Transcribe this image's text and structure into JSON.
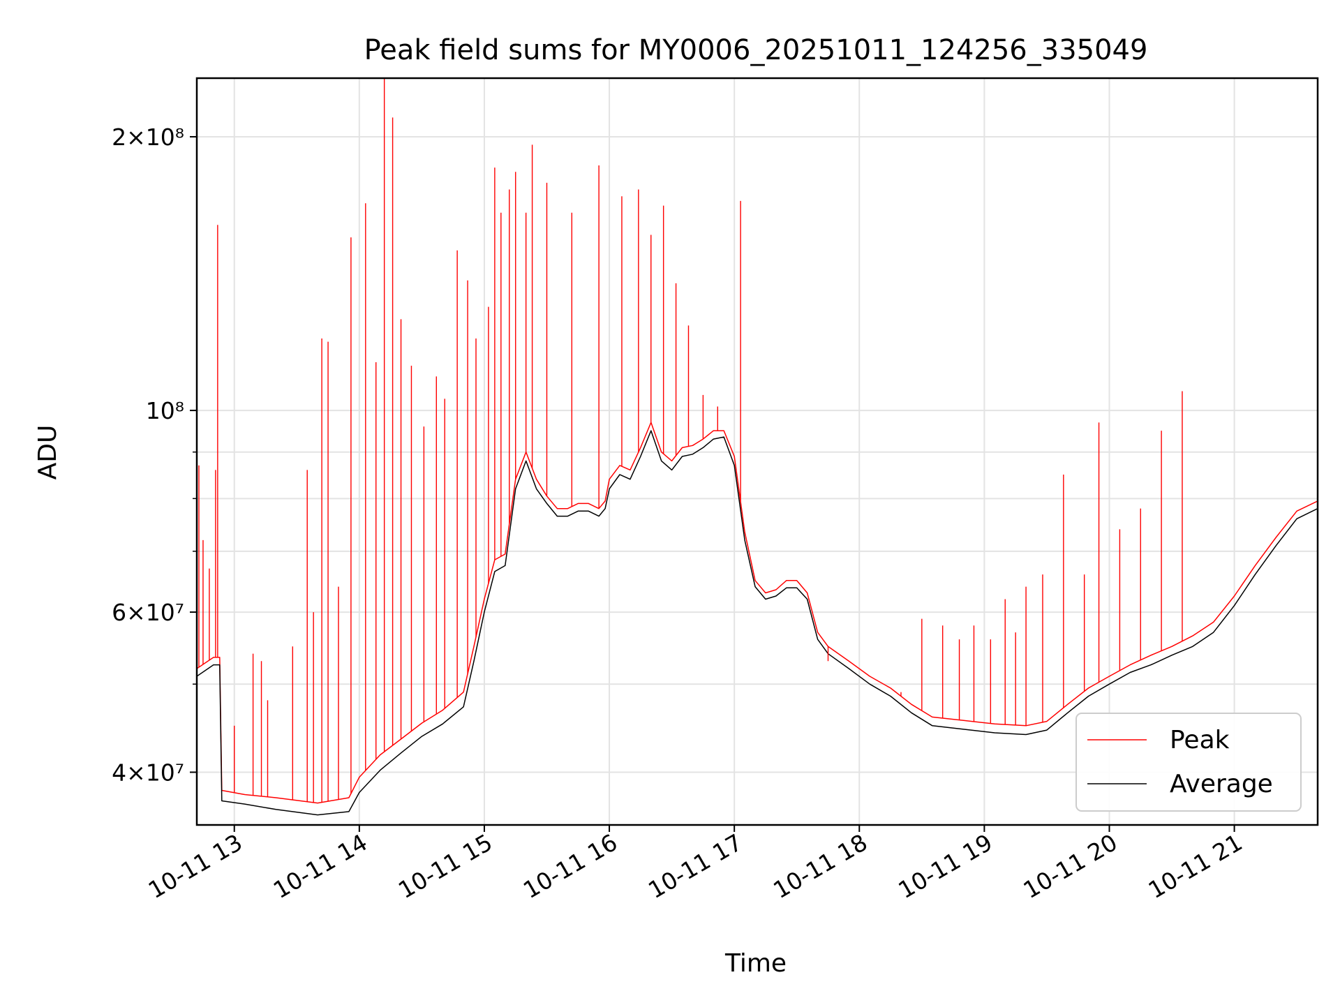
{
  "chart_data": {
    "type": "line",
    "title": "Peak field sums for MY0006_20251011_124256_335049",
    "xlabel": "Time",
    "ylabel": "ADU",
    "x_scale": "time",
    "y_scale": "log",
    "xlim": [
      "2025-10-11 12:42",
      "2025-10-11 21:40"
    ],
    "ylim": [
      35000000,
      232000000
    ],
    "grid": true,
    "legend_position": "lower-right",
    "x_ticks": [
      {
        "t": "2025-10-11 13:00",
        "label": "10-11 13"
      },
      {
        "t": "2025-10-11 14:00",
        "label": "10-11 14"
      },
      {
        "t": "2025-10-11 15:00",
        "label": "10-11 15"
      },
      {
        "t": "2025-10-11 16:00",
        "label": "10-11 16"
      },
      {
        "t": "2025-10-11 17:00",
        "label": "10-11 17"
      },
      {
        "t": "2025-10-11 18:00",
        "label": "10-11 18"
      },
      {
        "t": "2025-10-11 19:00",
        "label": "10-11 19"
      },
      {
        "t": "2025-10-11 20:00",
        "label": "10-11 20"
      },
      {
        "t": "2025-10-11 21:00",
        "label": "10-11 21"
      }
    ],
    "y_ticks": [
      {
        "v": 40000000,
        "label": "4×10⁷"
      },
      {
        "v": 60000000,
        "label": "6×10⁷"
      },
      {
        "v": 100000000,
        "label": "10⁸"
      },
      {
        "v": 200000000,
        "label": "2×10⁸"
      }
    ],
    "y_minor_ticks": [
      50000000,
      70000000,
      80000000,
      90000000
    ],
    "series": [
      {
        "name": "Average",
        "color": "#000000",
        "points": [
          [
            "2025-10-11 12:42",
            51000000
          ],
          [
            "2025-10-11 12:50",
            52500000
          ],
          [
            "2025-10-11 12:53",
            52500000
          ],
          [
            "2025-10-11 12:54",
            37200000
          ],
          [
            "2025-10-11 13:05",
            36900000
          ],
          [
            "2025-10-11 13:20",
            36400000
          ],
          [
            "2025-10-11 13:40",
            35900000
          ],
          [
            "2025-10-11 13:55",
            36200000
          ],
          [
            "2025-10-11 14:00",
            38000000
          ],
          [
            "2025-10-11 14:10",
            40200000
          ],
          [
            "2025-10-11 14:20",
            42000000
          ],
          [
            "2025-10-11 14:30",
            43800000
          ],
          [
            "2025-10-11 14:40",
            45200000
          ],
          [
            "2025-10-11 14:50",
            47200000
          ],
          [
            "2025-10-11 14:55",
            53000000
          ],
          [
            "2025-10-11 15:00",
            60000000
          ],
          [
            "2025-10-11 15:05",
            66500000
          ],
          [
            "2025-10-11 15:10",
            67500000
          ],
          [
            "2025-10-11 15:15",
            82000000
          ],
          [
            "2025-10-11 15:20",
            88000000
          ],
          [
            "2025-10-11 15:25",
            82000000
          ],
          [
            "2025-10-11 15:30",
            79000000
          ],
          [
            "2025-10-11 15:35",
            76500000
          ],
          [
            "2025-10-11 15:40",
            76500000
          ],
          [
            "2025-10-11 15:45",
            77500000
          ],
          [
            "2025-10-11 15:50",
            77500000
          ],
          [
            "2025-10-11 15:55",
            76500000
          ],
          [
            "2025-10-11 15:58",
            78000000
          ],
          [
            "2025-10-11 16:00",
            82000000
          ],
          [
            "2025-10-11 16:05",
            85000000
          ],
          [
            "2025-10-11 16:10",
            84000000
          ],
          [
            "2025-10-11 16:15",
            89000000
          ],
          [
            "2025-10-11 16:20",
            95000000
          ],
          [
            "2025-10-11 16:25",
            88000000
          ],
          [
            "2025-10-11 16:30",
            86000000
          ],
          [
            "2025-10-11 16:35",
            89000000
          ],
          [
            "2025-10-11 16:40",
            89500000
          ],
          [
            "2025-10-11 16:45",
            91000000
          ],
          [
            "2025-10-11 16:50",
            93000000
          ],
          [
            "2025-10-11 16:55",
            93500000
          ],
          [
            "2025-10-11 17:00",
            87000000
          ],
          [
            "2025-10-11 17:05",
            72000000
          ],
          [
            "2025-10-11 17:10",
            64000000
          ],
          [
            "2025-10-11 17:15",
            62000000
          ],
          [
            "2025-10-11 17:20",
            62500000
          ],
          [
            "2025-10-11 17:25",
            63800000
          ],
          [
            "2025-10-11 17:30",
            63800000
          ],
          [
            "2025-10-11 17:35",
            62000000
          ],
          [
            "2025-10-11 17:40",
            56000000
          ],
          [
            "2025-10-11 17:45",
            54000000
          ],
          [
            "2025-10-11 17:55",
            52000000
          ],
          [
            "2025-10-11 18:05",
            50000000
          ],
          [
            "2025-10-11 18:15",
            48500000
          ],
          [
            "2025-10-11 18:25",
            46500000
          ],
          [
            "2025-10-11 18:35",
            45000000
          ],
          [
            "2025-10-11 18:50",
            44600000
          ],
          [
            "2025-10-11 19:05",
            44200000
          ],
          [
            "2025-10-11 19:20",
            44000000
          ],
          [
            "2025-10-11 19:30",
            44500000
          ],
          [
            "2025-10-11 19:40",
            46500000
          ],
          [
            "2025-10-11 19:50",
            48500000
          ],
          [
            "2025-10-11 20:00",
            50000000
          ],
          [
            "2025-10-11 20:10",
            51500000
          ],
          [
            "2025-10-11 20:20",
            52500000
          ],
          [
            "2025-10-11 20:30",
            53800000
          ],
          [
            "2025-10-11 20:40",
            55000000
          ],
          [
            "2025-10-11 20:50",
            57000000
          ],
          [
            "2025-10-11 21:00",
            61000000
          ],
          [
            "2025-10-11 21:10",
            66000000
          ],
          [
            "2025-10-11 21:20",
            71000000
          ],
          [
            "2025-10-11 21:30",
            76000000
          ],
          [
            "2025-10-11 21:40",
            78000000
          ]
        ]
      },
      {
        "name": "Peak",
        "color": "#ff0000",
        "points": [
          [
            "2025-10-11 12:42",
            52000000
          ],
          [
            "2025-10-11 12:50",
            53500000
          ],
          [
            "2025-10-11 12:53",
            53500000
          ],
          [
            "2025-10-11 12:54",
            38200000
          ],
          [
            "2025-10-11 13:05",
            37800000
          ],
          [
            "2025-10-11 13:20",
            37500000
          ],
          [
            "2025-10-11 13:40",
            37000000
          ],
          [
            "2025-10-11 13:55",
            37500000
          ],
          [
            "2025-10-11 14:00",
            39500000
          ],
          [
            "2025-10-11 14:10",
            41800000
          ],
          [
            "2025-10-11 14:20",
            43500000
          ],
          [
            "2025-10-11 14:30",
            45300000
          ],
          [
            "2025-10-11 14:40",
            46800000
          ],
          [
            "2025-10-11 14:50",
            49000000
          ],
          [
            "2025-10-11 14:55",
            55000000
          ],
          [
            "2025-10-11 15:00",
            62000000
          ],
          [
            "2025-10-11 15:05",
            68500000
          ],
          [
            "2025-10-11 15:10",
            69500000
          ],
          [
            "2025-10-11 15:15",
            84000000
          ],
          [
            "2025-10-11 15:20",
            90000000
          ],
          [
            "2025-10-11 15:25",
            84000000
          ],
          [
            "2025-10-11 15:30",
            80500000
          ],
          [
            "2025-10-11 15:35",
            78000000
          ],
          [
            "2025-10-11 15:40",
            78000000
          ],
          [
            "2025-10-11 15:45",
            79000000
          ],
          [
            "2025-10-11 15:50",
            79000000
          ],
          [
            "2025-10-11 15:55",
            78000000
          ],
          [
            "2025-10-11 15:58",
            79500000
          ],
          [
            "2025-10-11 16:00",
            84000000
          ],
          [
            "2025-10-11 16:05",
            87000000
          ],
          [
            "2025-10-11 16:10",
            86000000
          ],
          [
            "2025-10-11 16:15",
            91000000
          ],
          [
            "2025-10-11 16:20",
            97000000
          ],
          [
            "2025-10-11 16:25",
            90000000
          ],
          [
            "2025-10-11 16:30",
            88000000
          ],
          [
            "2025-10-11 16:35",
            91000000
          ],
          [
            "2025-10-11 16:40",
            91500000
          ],
          [
            "2025-10-11 16:45",
            93000000
          ],
          [
            "2025-10-11 16:50",
            95000000
          ],
          [
            "2025-10-11 16:55",
            95000000
          ],
          [
            "2025-10-11 17:00",
            89000000
          ],
          [
            "2025-10-11 17:05",
            73500000
          ],
          [
            "2025-10-11 17:10",
            65000000
          ],
          [
            "2025-10-11 17:15",
            63000000
          ],
          [
            "2025-10-11 17:20",
            63500000
          ],
          [
            "2025-10-11 17:25",
            65000000
          ],
          [
            "2025-10-11 17:30",
            65000000
          ],
          [
            "2025-10-11 17:35",
            63000000
          ],
          [
            "2025-10-11 17:40",
            57000000
          ],
          [
            "2025-10-11 17:45",
            55000000
          ],
          [
            "2025-10-11 17:55",
            53000000
          ],
          [
            "2025-10-11 18:05",
            51000000
          ],
          [
            "2025-10-11 18:15",
            49500000
          ],
          [
            "2025-10-11 18:25",
            47500000
          ],
          [
            "2025-10-11 18:35",
            46000000
          ],
          [
            "2025-10-11 18:50",
            45600000
          ],
          [
            "2025-10-11 19:05",
            45200000
          ],
          [
            "2025-10-11 19:20",
            45000000
          ],
          [
            "2025-10-11 19:30",
            45500000
          ],
          [
            "2025-10-11 19:40",
            47500000
          ],
          [
            "2025-10-11 19:50",
            49500000
          ],
          [
            "2025-10-11 20:00",
            51000000
          ],
          [
            "2025-10-11 20:10",
            52500000
          ],
          [
            "2025-10-11 20:20",
            53800000
          ],
          [
            "2025-10-11 20:30",
            55000000
          ],
          [
            "2025-10-11 20:40",
            56500000
          ],
          [
            "2025-10-11 20:50",
            58500000
          ],
          [
            "2025-10-11 21:00",
            62500000
          ],
          [
            "2025-10-11 21:10",
            67500000
          ],
          [
            "2025-10-11 21:20",
            72500000
          ],
          [
            "2025-10-11 21:30",
            77500000
          ],
          [
            "2025-10-11 21:40",
            79500000
          ]
        ],
        "spikes": [
          [
            "2025-10-11 12:43",
            87000000
          ],
          [
            "2025-10-11 12:45",
            72000000
          ],
          [
            "2025-10-11 12:48",
            67000000
          ],
          [
            "2025-10-11 12:51",
            86000000
          ],
          [
            "2025-10-11 12:52",
            160000000
          ],
          [
            "2025-10-11 13:00",
            45000000
          ],
          [
            "2025-10-11 13:09",
            54000000
          ],
          [
            "2025-10-11 13:13",
            53000000
          ],
          [
            "2025-10-11 13:16",
            48000000
          ],
          [
            "2025-10-11 13:28",
            55000000
          ],
          [
            "2025-10-11 13:35",
            86000000
          ],
          [
            "2025-10-11 13:38",
            60000000
          ],
          [
            "2025-10-11 13:42",
            120000000
          ],
          [
            "2025-10-11 13:45",
            119000000
          ],
          [
            "2025-10-11 13:50",
            64000000
          ],
          [
            "2025-10-11 13:56",
            155000000
          ],
          [
            "2025-10-11 14:03",
            169000000
          ],
          [
            "2025-10-11 14:08",
            113000000
          ],
          [
            "2025-10-11 14:12",
            232000000
          ],
          [
            "2025-10-11 14:16",
            210000000
          ],
          [
            "2025-10-11 14:20",
            126000000
          ],
          [
            "2025-10-11 14:25",
            112000000
          ],
          [
            "2025-10-11 14:31",
            96000000
          ],
          [
            "2025-10-11 14:37",
            109000000
          ],
          [
            "2025-10-11 14:41",
            103000000
          ],
          [
            "2025-10-11 14:47",
            150000000
          ],
          [
            "2025-10-11 14:52",
            139000000
          ],
          [
            "2025-10-11 14:56",
            120000000
          ],
          [
            "2025-10-11 15:02",
            130000000
          ],
          [
            "2025-10-11 15:05",
            185000000
          ],
          [
            "2025-10-11 15:08",
            165000000
          ],
          [
            "2025-10-11 15:12",
            175000000
          ],
          [
            "2025-10-11 15:15",
            183000000
          ],
          [
            "2025-10-11 15:20",
            165000000
          ],
          [
            "2025-10-11 15:23",
            196000000
          ],
          [
            "2025-10-11 15:30",
            178000000
          ],
          [
            "2025-10-11 15:42",
            165000000
          ],
          [
            "2025-10-11 15:55",
            186000000
          ],
          [
            "2025-10-11 16:06",
            172000000
          ],
          [
            "2025-10-11 16:14",
            175000000
          ],
          [
            "2025-10-11 16:20",
            156000000
          ],
          [
            "2025-10-11 16:26",
            168000000
          ],
          [
            "2025-10-11 16:32",
            138000000
          ],
          [
            "2025-10-11 16:38",
            124000000
          ],
          [
            "2025-10-11 16:45",
            104000000
          ],
          [
            "2025-10-11 16:52",
            101000000
          ],
          [
            "2025-10-11 17:03",
            170000000
          ],
          [
            "2025-10-11 17:45",
            53000000
          ],
          [
            "2025-10-11 18:20",
            49000000
          ],
          [
            "2025-10-11 18:30",
            59000000
          ],
          [
            "2025-10-11 18:40",
            58000000
          ],
          [
            "2025-10-11 18:48",
            56000000
          ],
          [
            "2025-10-11 18:55",
            58000000
          ],
          [
            "2025-10-11 19:03",
            56000000
          ],
          [
            "2025-10-11 19:10",
            62000000
          ],
          [
            "2025-10-11 19:15",
            57000000
          ],
          [
            "2025-10-11 19:20",
            64000000
          ],
          [
            "2025-10-11 19:28",
            66000000
          ],
          [
            "2025-10-11 19:38",
            85000000
          ],
          [
            "2025-10-11 19:48",
            66000000
          ],
          [
            "2025-10-11 19:55",
            97000000
          ],
          [
            "2025-10-11 20:05",
            74000000
          ],
          [
            "2025-10-11 20:15",
            78000000
          ],
          [
            "2025-10-11 20:25",
            95000000
          ],
          [
            "2025-10-11 20:35",
            105000000
          ]
        ]
      }
    ]
  }
}
